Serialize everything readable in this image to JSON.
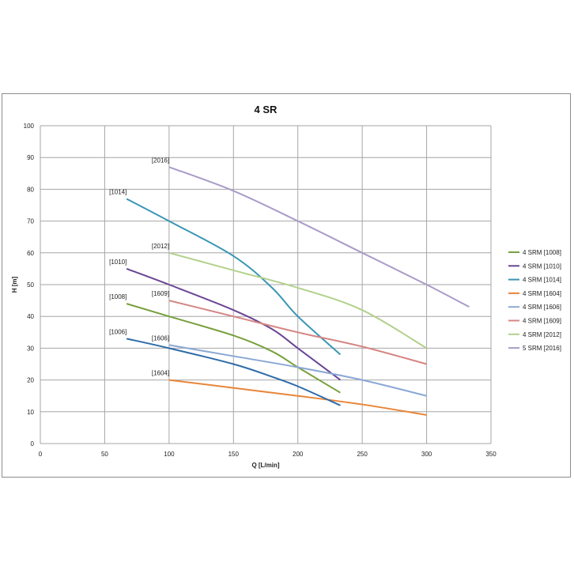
{
  "chart_data": {
    "type": "line",
    "title": "4 SR",
    "xlabel": "Q [L/min]",
    "ylabel": "H [m]",
    "xlim": [
      0,
      350
    ],
    "ylim": [
      0,
      100
    ],
    "xticks": [
      0,
      50,
      100,
      150,
      200,
      250,
      300,
      350
    ],
    "yticks": [
      0,
      10,
      20,
      30,
      40,
      50,
      60,
      70,
      80,
      90,
      100
    ],
    "grid": true,
    "legend_position": "right",
    "series": [
      {
        "name": "4 SRM [1008]",
        "color": "#77a03c",
        "annotation": "[1008]",
        "x": [
          67,
          100,
          150,
          180,
          200,
          233
        ],
        "y": [
          44,
          40,
          34,
          29,
          24,
          16
        ]
      },
      {
        "name": "4 SRM [1010]",
        "color": "#6a4595",
        "annotation": "[1010]",
        "x": [
          67,
          100,
          150,
          180,
          200,
          233
        ],
        "y": [
          55,
          50,
          42,
          36,
          30,
          20
        ]
      },
      {
        "name": "4 SRM [1014]",
        "color": "#3996b5",
        "annotation": "[1014]",
        "x": [
          67,
          100,
          150,
          180,
          200,
          233
        ],
        "y": [
          77,
          70,
          59,
          49,
          40,
          28
        ]
      },
      {
        "name": "4 SRM [1604]",
        "color": "#e98537",
        "annotation": "[1604]",
        "x": [
          100,
          150,
          200,
          250,
          300
        ],
        "y": [
          20,
          17.5,
          15,
          12.3,
          9
        ]
      },
      {
        "name": "4 SRM [1606]",
        "color": "#8aa8d4",
        "annotation": "[1606]",
        "x": [
          100,
          150,
          200,
          250,
          300
        ],
        "y": [
          31,
          27.5,
          24,
          20,
          15
        ]
      },
      {
        "name": "4 SRM [1609]",
        "color": "#d58684",
        "annotation": "[1609]",
        "x": [
          100,
          150,
          200,
          250,
          300
        ],
        "y": [
          45,
          40,
          35,
          30.5,
          25
        ]
      },
      {
        "name": "4 SRM [2012]",
        "color": "#b2d18b",
        "annotation": "[2012]",
        "x": [
          100,
          150,
          200,
          250,
          300
        ],
        "y": [
          60,
          54.5,
          49,
          42,
          30
        ]
      },
      {
        "name": "5 SRM [2016]",
        "color": "#a99bc8",
        "annotation": "[2016]",
        "x": [
          100,
          150,
          200,
          250,
          300,
          333
        ],
        "y": [
          87,
          79.5,
          70,
          60,
          50,
          43
        ]
      }
    ],
    "annotations": [
      {
        "text": "[1014]",
        "x": 67,
        "y": 77
      },
      {
        "text": "[2016]",
        "x": 100,
        "y": 87
      },
      {
        "text": "[2012]",
        "x": 100,
        "y": 60
      },
      {
        "text": "[1010]",
        "x": 67,
        "y": 55
      },
      {
        "text": "[1609]",
        "x": 100,
        "y": 45
      },
      {
        "text": "[1008]",
        "x": 67,
        "y": 44
      },
      {
        "text": "[1006]",
        "x": 67,
        "y": 33
      },
      {
        "text": "[1606]",
        "x": 100,
        "y": 31
      },
      {
        "text": "[1604]",
        "x": 100,
        "y": 20
      }
    ],
    "extra_series": [
      {
        "name": "[1006]",
        "color": "#2e6ba8",
        "x": [
          67,
          100,
          150,
          180,
          200,
          233
        ],
        "y": [
          33,
          30,
          25,
          21,
          18,
          12
        ]
      }
    ]
  }
}
